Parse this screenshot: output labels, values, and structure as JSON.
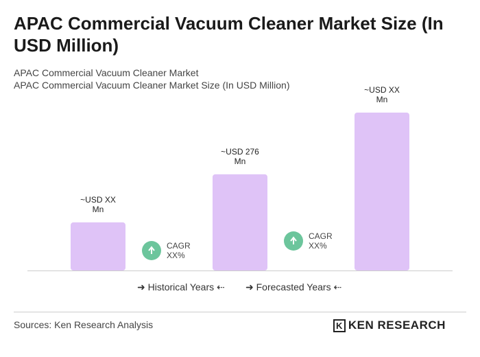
{
  "chart_data": {
    "type": "bar",
    "title": "APAC Commercial Vacuum Cleaner Market Size (In USD Million)",
    "subtitles": [
      "APAC Commercial Vacuum Cleaner Market",
      "APAC Commercial Vacuum Cleaner Market Size (In USD Million)"
    ],
    "categories": [
      null,
      null,
      null
    ],
    "values": [
      138,
      276,
      453
    ],
    "value_labels": [
      "~USD XX Mn",
      "~USD 276 Mn",
      "~USD XX Mn"
    ],
    "color": "#dfc3f7",
    "annotations": [
      "CAGR XX%",
      "CAGR XX%"
    ],
    "annotation_color": "#6cc59c",
    "periods": [
      "Historical Years",
      "Forecasted Years"
    ],
    "source": "Sources: Ken Research Analysis",
    "logo": "KEN RESEARCH"
  }
}
